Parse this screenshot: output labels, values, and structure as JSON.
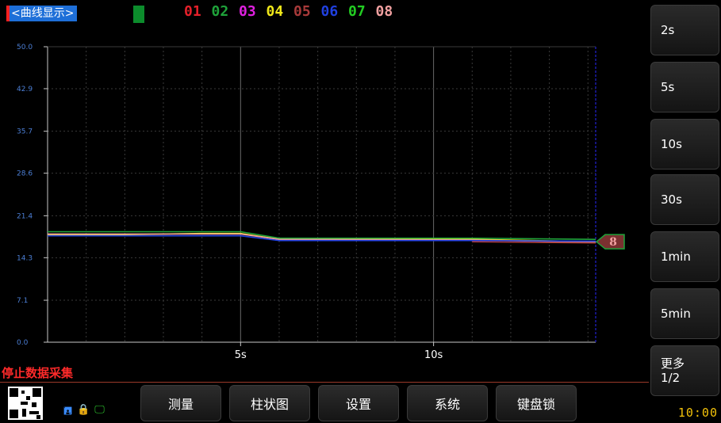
{
  "header": {
    "title": "<曲线显示>",
    "channels": [
      {
        "label": "01",
        "color": "#e5202a"
      },
      {
        "label": "02",
        "color": "#1fa33a"
      },
      {
        "label": "03",
        "color": "#e021e0"
      },
      {
        "label": "04",
        "color": "#f0e81a"
      },
      {
        "label": "05",
        "color": "#a83a3a"
      },
      {
        "label": "06",
        "color": "#2040e0"
      },
      {
        "label": "07",
        "color": "#22cc22"
      },
      {
        "label": "08",
        "color": "#f0a0a0"
      }
    ]
  },
  "sidebar": {
    "buttons": [
      "2s",
      "5s",
      "10s",
      "30s",
      "1min",
      "5min"
    ],
    "more_label": "更多",
    "more_page": "1/2"
  },
  "clock": "10:00",
  "status_text": "停止数据采集",
  "status_icons": [
    "usb-icon",
    "lock-icon",
    "monitor-icon"
  ],
  "bottom_buttons": [
    "测量",
    "柱状图",
    "设置",
    "系统",
    "键盘锁"
  ],
  "marker_label": "8",
  "chart_data": {
    "type": "line",
    "ylim": [
      0,
      50
    ],
    "xlim": [
      0,
      14.2
    ],
    "y_ticks": [
      "0.0",
      "7.1",
      "14.3",
      "21.4",
      "28.6",
      "35.7",
      "42.9",
      "50.0"
    ],
    "x_ticks": [
      {
        "value": 5,
        "label": "5s"
      },
      {
        "value": 10,
        "label": "10s"
      }
    ],
    "grid": true,
    "series": [
      {
        "color": "#1fa33a",
        "x": [
          0,
          4,
          5,
          6,
          11,
          14.2
        ],
        "values": [
          18.7,
          18.7,
          18.7,
          17.6,
          17.6,
          17.4
        ]
      },
      {
        "color": "#f0e81a",
        "x": [
          0,
          2,
          4,
          5,
          6,
          11,
          14.2
        ],
        "values": [
          18.2,
          18.2,
          18.4,
          18.4,
          17.4,
          17.4,
          17.0
        ]
      },
      {
        "color": "#f0a0a0",
        "x": [
          0,
          5,
          6,
          11,
          14.2
        ],
        "values": [
          18.3,
          18.3,
          17.4,
          17.3,
          16.9
        ]
      },
      {
        "color": "#2040e0",
        "x": [
          0,
          5,
          6,
          11,
          14.2
        ],
        "values": [
          18.0,
          18.0,
          17.2,
          17.2,
          17.1
        ]
      },
      {
        "color": "#a83a3a",
        "x": [
          11,
          14.2
        ],
        "values": [
          17.0,
          16.8
        ]
      }
    ]
  }
}
